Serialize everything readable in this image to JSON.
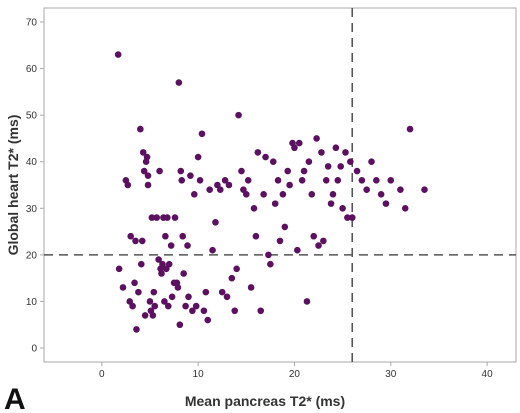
{
  "chart_data": {
    "type": "scatter",
    "panel_label": "A",
    "xlabel": "Mean pancreas T2* (ms)",
    "ylabel": "Global heart T2* (ms)",
    "xlim": [
      -6,
      43
    ],
    "ylim": [
      -3,
      73
    ],
    "xticks": [
      0,
      10,
      20,
      30,
      40
    ],
    "yticks": [
      0,
      10,
      20,
      30,
      40,
      50,
      60,
      70
    ],
    "grid": false,
    "legend": "none",
    "reference_lines": [
      {
        "axis": "x",
        "value": 26,
        "style": "dashed"
      },
      {
        "axis": "y",
        "value": 20,
        "style": "dashed"
      }
    ],
    "colors": {
      "points": "#5c1060",
      "axes": "#aaaaaa",
      "reference": "#555555"
    },
    "series": [
      {
        "x": [
          1.7,
          1.8,
          2.2,
          2.5,
          2.7,
          2.9,
          3.0,
          3.2,
          3.4,
          3.5,
          3.6,
          3.8,
          4.0,
          4.1,
          4.2,
          4.3,
          4.4,
          4.5,
          4.6,
          4.7,
          4.8,
          4.8,
          5.0,
          5.1,
          5.2,
          5.3,
          5.4,
          5.5,
          5.7,
          5.9,
          6.0,
          6.1,
          6.2,
          6.3,
          6.4,
          6.5,
          6.6,
          6.7,
          6.8,
          6.9,
          7.0,
          7.2,
          7.3,
          7.5,
          7.6,
          7.8,
          7.9,
          8.0,
          8.1,
          8.2,
          8.3,
          8.4,
          8.5,
          8.7,
          8.9,
          9.0,
          9.2,
          9.4,
          9.6,
          9.8,
          10.0,
          10.2,
          10.4,
          10.6,
          10.8,
          11.0,
          11.2,
          11.5,
          11.8,
          12.0,
          12.3,
          12.5,
          12.8,
          13.0,
          13.2,
          13.5,
          13.8,
          14.0,
          14.2,
          14.5,
          14.7,
          15.0,
          15.2,
          15.5,
          15.8,
          16.0,
          16.2,
          16.5,
          16.8,
          17.0,
          17.3,
          17.5,
          17.8,
          18.0,
          18.3,
          18.5,
          18.8,
          19.0,
          19.3,
          19.5,
          19.8,
          20.0,
          20.3,
          20.5,
          20.8,
          21.0,
          21.3,
          21.5,
          21.8,
          22.0,
          22.3,
          22.5,
          22.8,
          23.0,
          23.3,
          23.5,
          23.8,
          24.0,
          24.3,
          24.5,
          24.8,
          25.0,
          25.3,
          25.5,
          25.8,
          26.0,
          26.5,
          27.0,
          27.5,
          28.0,
          28.5,
          29.0,
          29.5,
          30.0,
          31.0,
          31.5,
          32.0,
          33.5
        ],
        "y": [
          63,
          17,
          13,
          36,
          35,
          10,
          24,
          9,
          14,
          23,
          4,
          12,
          47,
          18,
          23,
          42,
          38,
          7,
          40,
          41,
          35,
          37,
          10,
          8,
          28,
          7,
          12,
          9,
          28,
          19,
          38,
          17,
          16,
          18,
          28,
          10,
          24,
          17,
          28,
          9,
          18,
          22,
          11,
          14,
          28,
          14,
          13,
          57,
          5,
          38,
          36,
          24,
          16,
          9,
          22,
          11,
          37,
          8,
          33,
          9,
          41,
          36,
          46,
          8,
          12,
          6,
          34,
          21,
          27,
          35,
          34,
          12,
          36,
          11,
          35,
          15,
          8,
          17,
          50,
          38,
          34,
          33,
          36,
          13,
          30,
          24,
          42,
          8,
          33,
          41,
          20,
          18,
          40,
          31,
          36,
          23,
          33,
          26,
          38,
          35,
          44,
          43,
          21,
          44,
          36,
          38,
          10,
          40,
          33,
          24,
          45,
          22,
          42,
          23,
          36,
          39,
          31,
          33,
          43,
          36,
          39,
          30,
          42,
          28,
          40,
          28,
          38,
          36,
          34,
          40,
          36,
          33,
          31,
          36,
          34,
          30,
          47,
          34
        ]
      }
    ]
  }
}
